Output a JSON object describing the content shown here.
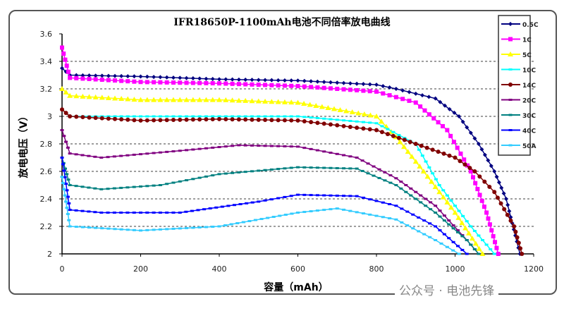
{
  "chart_data": {
    "type": "line",
    "title": "IFR18650P-1100mAh电池不同倍率放电曲线",
    "xlabel": "容量（mAh）",
    "ylabel": "放电电压（V）",
    "xlim": [
      0,
      1200
    ],
    "ylim": [
      2,
      3.6
    ],
    "xticks": [
      "0",
      "200",
      "400",
      "600",
      "800",
      "1000",
      "1200"
    ],
    "yticks": [
      "2",
      "2.2",
      "2.4",
      "2.6",
      "2.8",
      "3",
      "3.2",
      "3.4",
      "3.6"
    ],
    "grid": "horizontal dashed",
    "legend_position": "right",
    "series": [
      {
        "name": "0.5C",
        "color": "#000080",
        "marker": "diamond",
        "x": [
          0,
          20,
          200,
          400,
          600,
          800,
          850,
          950,
          1010,
          1060,
          1100,
          1130,
          1165
        ],
        "y": [
          3.35,
          3.3,
          3.29,
          3.27,
          3.26,
          3.23,
          3.2,
          3.13,
          3.0,
          2.8,
          2.6,
          2.4,
          2.0
        ]
      },
      {
        "name": "1C",
        "color": "#ff00ff",
        "marker": "square",
        "x": [
          0,
          20,
          200,
          400,
          600,
          800,
          900,
          980,
          1040,
          1080,
          1110
        ],
        "y": [
          3.5,
          3.28,
          3.25,
          3.24,
          3.22,
          3.18,
          3.1,
          2.9,
          2.6,
          2.3,
          2.0
        ]
      },
      {
        "name": "5C",
        "color": "#ffff00",
        "marker": "triangle",
        "x": [
          0,
          20,
          200,
          400,
          600,
          800,
          850,
          920,
          1000,
          1070
        ],
        "y": [
          3.2,
          3.15,
          3.12,
          3.12,
          3.1,
          3.0,
          2.85,
          2.6,
          2.3,
          2.0
        ]
      },
      {
        "name": "10C",
        "color": "#00ffff",
        "marker": "x",
        "x": [
          0,
          20,
          200,
          400,
          600,
          800,
          900,
          960,
          1040,
          1100
        ],
        "y": [
          3.05,
          3.0,
          3.0,
          3.0,
          3.0,
          2.95,
          2.8,
          2.5,
          2.2,
          2.0
        ]
      },
      {
        "name": "14C",
        "color": "#800000",
        "marker": "circle",
        "x": [
          0,
          20,
          200,
          400,
          600,
          800,
          900,
          1000,
          1050,
          1100,
          1150,
          1170
        ],
        "y": [
          3.05,
          3.0,
          2.97,
          2.98,
          2.97,
          2.9,
          2.8,
          2.7,
          2.6,
          2.45,
          2.2,
          2.0
        ]
      },
      {
        "name": "20C",
        "color": "#800080",
        "marker": "star",
        "x": [
          0,
          20,
          100,
          300,
          450,
          600,
          750,
          850,
          950,
          1030,
          1060
        ],
        "y": [
          2.9,
          2.73,
          2.7,
          2.75,
          2.79,
          2.78,
          2.7,
          2.55,
          2.35,
          2.1,
          2.0
        ]
      },
      {
        "name": "30C",
        "color": "#008080",
        "marker": "plus",
        "x": [
          0,
          20,
          100,
          250,
          400,
          600,
          750,
          850,
          950,
          1030,
          1060
        ],
        "y": [
          2.7,
          2.5,
          2.47,
          2.5,
          2.58,
          2.63,
          2.62,
          2.5,
          2.3,
          2.1,
          2.0
        ]
      },
      {
        "name": "40C",
        "color": "#0000ff",
        "marker": "dash",
        "x": [
          0,
          20,
          100,
          300,
          500,
          600,
          750,
          850,
          950,
          1030
        ],
        "y": [
          2.7,
          2.32,
          2.3,
          2.3,
          2.38,
          2.43,
          2.42,
          2.35,
          2.2,
          2.0
        ]
      },
      {
        "name": "50A",
        "color": "#33ccff",
        "marker": "dash",
        "x": [
          0,
          20,
          200,
          400,
          600,
          700,
          850,
          950,
          1010
        ],
        "y": [
          2.56,
          2.2,
          2.17,
          2.2,
          2.3,
          2.33,
          2.25,
          2.1,
          2.0
        ]
      }
    ]
  },
  "watermark": "公众号 · 电池先锋"
}
